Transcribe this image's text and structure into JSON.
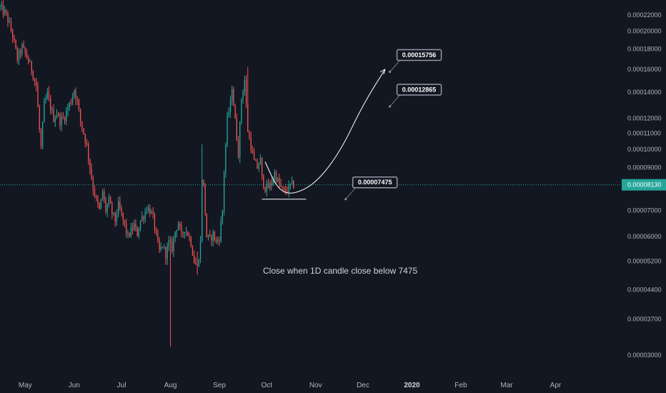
{
  "chart_data": {
    "type": "candlestick",
    "title": "",
    "scale": "log",
    "ylim": [
      2.7e-05,
      0.00024
    ],
    "grid": false,
    "x_axis": {
      "labels": [
        {
          "text": "May",
          "t": 0,
          "bold": false
        },
        {
          "text": "Jun",
          "t": 31,
          "bold": false
        },
        {
          "text": "Jul",
          "t": 61,
          "bold": false
        },
        {
          "text": "Aug",
          "t": 92,
          "bold": false
        },
        {
          "text": "Sep",
          "t": 123,
          "bold": false
        },
        {
          "text": "Oct",
          "t": 153,
          "bold": false
        },
        {
          "text": "Nov",
          "t": 184,
          "bold": false
        },
        {
          "text": "Dec",
          "t": 214,
          "bold": false
        },
        {
          "text": "2020",
          "t": 245,
          "bold": true
        },
        {
          "text": "Feb",
          "t": 276,
          "bold": false
        },
        {
          "text": "Mar",
          "t": 305,
          "bold": false
        },
        {
          "text": "Apr",
          "t": 336,
          "bold": false
        }
      ],
      "t_range": [
        -16,
        377
      ]
    },
    "y_axis": {
      "ticks": [
        {
          "label": "0.00022000",
          "value": 0.00022
        },
        {
          "label": "0.00020000",
          "value": 0.0002
        },
        {
          "label": "0.00018000",
          "value": 0.00018
        },
        {
          "label": "0.00016000",
          "value": 0.00016
        },
        {
          "label": "0.00014000",
          "value": 0.00014
        },
        {
          "label": "0.00012000",
          "value": 0.00012
        },
        {
          "label": "0.00011000",
          "value": 0.00011
        },
        {
          "label": "0.00010000",
          "value": 0.0001
        },
        {
          "label": "0.00009000",
          "value": 9e-05
        },
        {
          "label": "0.00007000",
          "value": 7e-05
        },
        {
          "label": "0.00006000",
          "value": 6e-05
        },
        {
          "label": "0.00005200",
          "value": 5.2e-05
        },
        {
          "label": "0.00004400",
          "value": 4.4e-05
        },
        {
          "label": "0.00003700",
          "value": 3.7e-05
        },
        {
          "label": "0.00003000",
          "value": 3e-05
        }
      ]
    },
    "current_price": {
      "label": "0.00008130",
      "value": 8.13e-05,
      "color": "#26a69a"
    },
    "colors": {
      "up": "#26a69a",
      "down": "#ef5350",
      "background": "#131722",
      "text": "#b2b5be",
      "drawing": "#ffffff"
    },
    "price_path": [
      [
        -16,
        0.00023
      ],
      [
        -12,
        0.00022
      ],
      [
        -8,
        0.000195
      ],
      [
        -5,
        0.00017
      ],
      [
        -2,
        0.000182
      ],
      [
        1,
        0.000172
      ],
      [
        4,
        0.00016
      ],
      [
        7,
        0.000145
      ],
      [
        9,
        0.000112
      ],
      [
        10,
        0.000101
      ],
      [
        12,
        0.00013
      ],
      [
        14,
        0.000138
      ],
      [
        16,
        0.000128
      ],
      [
        18,
        0.00012
      ],
      [
        20,
        0.000124
      ],
      [
        22,
        0.000118
      ],
      [
        25,
        0.000121
      ],
      [
        27,
        0.000128
      ],
      [
        29,
        0.000133
      ],
      [
        31,
        0.000142
      ],
      [
        33,
        0.000132
      ],
      [
        35,
        0.000118
      ],
      [
        37,
        0.00011
      ],
      [
        39,
        0.000102
      ],
      [
        41,
        9e-05
      ],
      [
        43,
        8e-05
      ],
      [
        45,
        7.4e-05
      ],
      [
        47,
        7e-05
      ],
      [
        49,
        7.8e-05
      ],
      [
        51,
        7e-05
      ],
      [
        53,
        7.4e-05
      ],
      [
        55,
        6.9e-05
      ],
      [
        57,
        6.6e-05
      ],
      [
        59,
        7.2e-05
      ],
      [
        61,
        6.8e-05
      ],
      [
        63,
        6.4e-05
      ],
      [
        65,
        6e-05
      ],
      [
        67,
        6.2e-05
      ],
      [
        69,
        6.4e-05
      ],
      [
        71,
        6.1e-05
      ],
      [
        73,
        6.6e-05
      ],
      [
        75,
        6.8e-05
      ],
      [
        77,
        7.1e-05
      ],
      [
        79,
        7e-05
      ],
      [
        81,
        6.7e-05
      ],
      [
        83,
        6e-05
      ],
      [
        85,
        5.5e-05
      ],
      [
        87,
        5.7e-05
      ],
      [
        89,
        5.4e-05
      ],
      [
        91,
        5.8e-05
      ],
      [
        93,
        5.6e-05
      ],
      [
        95,
        6.2e-05
      ],
      [
        97,
        6.5e-05
      ],
      [
        99,
        6e-05
      ],
      [
        101,
        6.3e-05
      ],
      [
        103,
        6.1e-05
      ],
      [
        105,
        5.8e-05
      ],
      [
        107,
        5.2e-05
      ],
      [
        109,
        5e-05
      ],
      [
        111,
        5.8e-05
      ],
      [
        112,
        8.5e-05
      ],
      [
        113,
        8e-05
      ],
      [
        115,
        6e-05
      ],
      [
        117,
        5.9e-05
      ],
      [
        119,
        6.1e-05
      ],
      [
        121,
        5.8e-05
      ],
      [
        123,
        6e-05
      ],
      [
        125,
        7e-05
      ],
      [
        126,
        8.8e-05
      ],
      [
        128,
        0.00012
      ],
      [
        130,
        0.00013
      ],
      [
        131,
        0.000145
      ],
      [
        133,
        0.000118
      ],
      [
        135,
        9.8e-05
      ],
      [
        137,
        0.000135
      ],
      [
        139,
        0.00015
      ],
      [
        141,
        0.000112
      ],
      [
        143,
        0.000102
      ],
      [
        145,
        9.3e-05
      ],
      [
        147,
        9e-05
      ],
      [
        149,
        9.4e-05
      ],
      [
        150,
        8.4e-05
      ],
      [
        152,
        8e-05
      ],
      [
        154,
        8e-05
      ],
      [
        156,
        8.2e-05
      ],
      [
        158,
        8.7e-05
      ],
      [
        160,
        8.3e-05
      ],
      [
        162,
        8e-05
      ],
      [
        164,
        7.8e-05
      ],
      [
        166,
        7.9e-05
      ],
      [
        168,
        8.1e-05
      ],
      [
        170,
        8.13e-05
      ]
    ],
    "wicks": [
      {
        "t": 92,
        "high": 5.2e-05,
        "low": 3.15e-05
      },
      {
        "t": 112,
        "high": 0.000103,
        "low": 5.8e-05
      },
      {
        "t": 141,
        "high": 0.000162,
        "low": 0.000118
      },
      {
        "t": 109,
        "high": 5.5e-05,
        "low": 4.8e-05
      }
    ],
    "annotations": {
      "support_level": 7.475e-05,
      "support_t_range": [
        150,
        178
      ],
      "projection_path": [
        [
          152,
          9.3e-05
        ],
        [
          160,
          7.9e-05
        ],
        [
          170,
          7.66e-05
        ],
        [
          185,
          8.26e-05
        ],
        [
          200,
          9.95e-05
        ],
        [
          214,
          0.00013
        ],
        [
          228,
          0.00016
        ]
      ],
      "targets": [
        {
          "label": "0.00015756",
          "value": 0.00015756
        },
        {
          "label": "0.00012865",
          "value": 0.00012865
        },
        {
          "label": "0.00007475",
          "value": 7.475e-05
        }
      ],
      "note": "Close when 1D candle close below 7475"
    }
  }
}
